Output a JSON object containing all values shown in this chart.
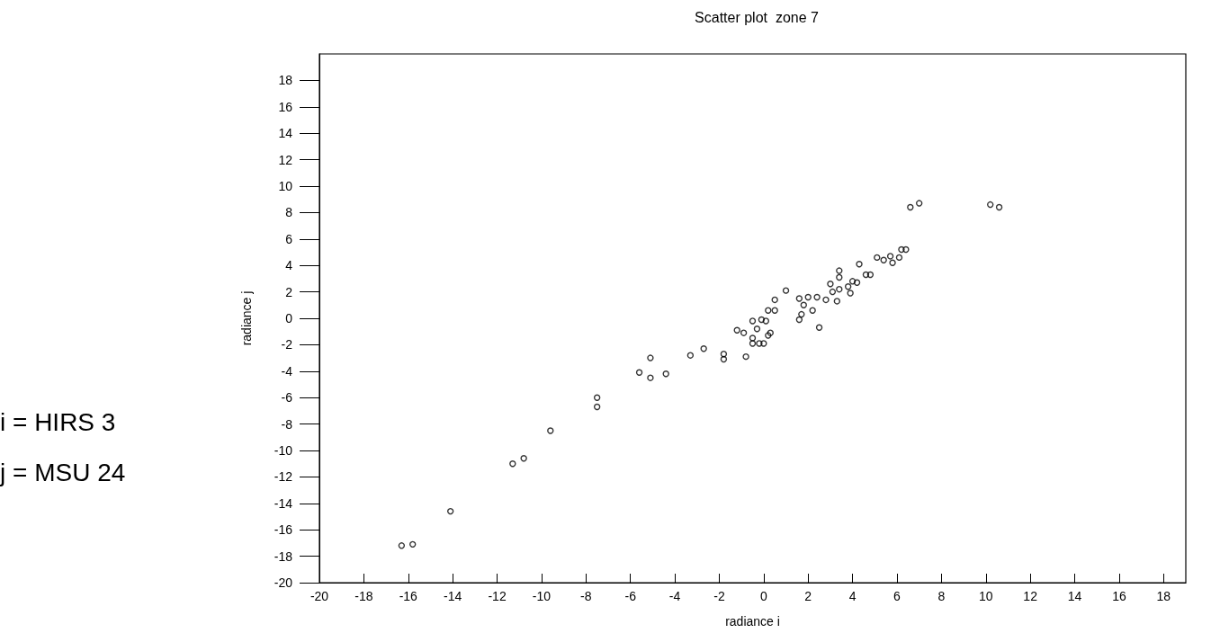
{
  "chart_data": {
    "type": "scatter",
    "title": "Scatter plot  zone 7",
    "xlabel": "radiance i",
    "ylabel": "radiance j",
    "annotations": [
      "i = HIRS 3",
      "j = MSU 24"
    ],
    "color": "#000000",
    "marker": "circle",
    "x": [
      -16.3,
      -15.8,
      -14.1,
      -11.3,
      -10.8,
      -9.6,
      -7.5,
      -7.5,
      -5.6,
      -5.1,
      -5.1,
      -4.4,
      -3.3,
      -2.7,
      -1.8,
      -1.8,
      -0.8,
      -1.2,
      -0.9,
      -0.5,
      -0.3,
      -0.1,
      0.1,
      -0.5,
      -0.5,
      -0.2,
      0.0,
      0.2,
      0.3,
      0.2,
      0.5,
      0.5,
      1.0,
      1.6,
      2.0,
      2.4,
      1.8,
      2.2,
      1.7,
      1.6,
      2.5,
      2.8,
      3.3,
      3.0,
      3.1,
      3.4,
      3.4,
      3.4,
      3.8,
      3.9,
      4.2,
      4.6,
      4.8,
      4.0,
      4.3,
      5.1,
      5.4,
      5.7,
      5.8,
      6.1,
      6.2,
      6.4,
      6.6,
      7.0,
      10.2,
      10.6
    ],
    "values": [
      -17.2,
      -17.1,
      -14.6,
      -11.0,
      -10.6,
      -8.5,
      -6.0,
      -6.7,
      -4.1,
      -3.0,
      -4.5,
      -4.2,
      -2.8,
      -2.3,
      -2.7,
      -3.1,
      -2.9,
      -0.9,
      -1.1,
      -0.2,
      -0.8,
      -0.1,
      -0.2,
      -1.5,
      -1.9,
      -1.9,
      -1.9,
      -1.3,
      -1.1,
      0.6,
      0.6,
      1.4,
      2.1,
      1.5,
      1.6,
      1.6,
      1.0,
      0.6,
      0.3,
      -0.1,
      -0.7,
      1.4,
      1.3,
      2.6,
      2.0,
      2.2,
      3.1,
      3.6,
      2.4,
      1.9,
      2.7,
      3.3,
      3.3,
      2.8,
      4.1,
      4.6,
      4.4,
      4.7,
      4.2,
      4.6,
      5.2,
      5.2,
      8.4,
      8.7,
      8.6,
      8.4
    ],
    "xlim": [
      -20,
      19
    ],
    "ylim": [
      -20,
      20
    ],
    "xticks": [
      -20,
      -18,
      -16,
      -14,
      -12,
      -10,
      -8,
      -6,
      -4,
      -2,
      0,
      2,
      4,
      6,
      8,
      10,
      12,
      14,
      16,
      18
    ],
    "yticks": [
      -20,
      -18,
      -16,
      -14,
      -12,
      -10,
      -8,
      -6,
      -4,
      -2,
      0,
      2,
      4,
      6,
      8,
      10,
      12,
      14,
      16,
      18
    ]
  }
}
